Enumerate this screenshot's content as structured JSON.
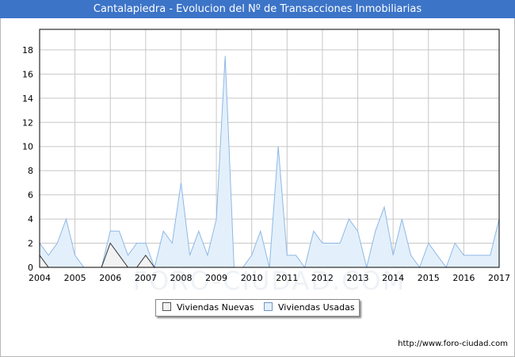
{
  "title": "Cantalapiedra - Evolucion del Nº de Transacciones Inmobiliarias",
  "footer_url": "http://www.foro-ciudad.com",
  "watermark": "FORO-CIUDAD.COM",
  "colors": {
    "title_bg": "#3c74c8",
    "usadas_fill": "#e3f0fb",
    "usadas_line": "#8fb8e6",
    "nuevas_fill": "#f2f2f2",
    "nuevas_line": "#333333",
    "grid": "#c8c8c8"
  },
  "chart_data": {
    "type": "area",
    "x_tick_labels": [
      "2004",
      "2005",
      "2006",
      "2007",
      "2008",
      "2009",
      "2010",
      "2011",
      "2012",
      "2013",
      "2014",
      "2015",
      "2016",
      "2017"
    ],
    "y_ticks": [
      0,
      2,
      4,
      6,
      8,
      10,
      12,
      14,
      16,
      18
    ],
    "ylim": [
      0,
      19.7
    ],
    "xlim": [
      2004,
      2017
    ],
    "grid": true,
    "legend_position": "bottom-center",
    "series": [
      {
        "name": "Viviendas Nuevas",
        "x": [
          "2004-T1",
          "2004-T2",
          "2004-T3",
          "2004-T4",
          "2005-T1",
          "2005-T2",
          "2005-T3",
          "2005-T4",
          "2006-T1",
          "2006-T2",
          "2006-T3",
          "2006-T4",
          "2007-T1",
          "2007-T2"
        ],
        "values": [
          1,
          0,
          0,
          0,
          0,
          0,
          0,
          0,
          2,
          1,
          0,
          0,
          1,
          0
        ]
      },
      {
        "name": "Viviendas Usadas",
        "x": [
          "2004-T1",
          "2004-T2",
          "2004-T3",
          "2004-T4",
          "2005-T1",
          "2005-T2",
          "2005-T3",
          "2005-T4",
          "2006-T1",
          "2006-T2",
          "2006-T3",
          "2006-T4",
          "2007-T1",
          "2007-T2",
          "2007-T3",
          "2007-T4",
          "2008-T1",
          "2008-T2",
          "2008-T3",
          "2008-T4",
          "2009-T1",
          "2009-T2",
          "2009-T3",
          "2009-T4",
          "2010-T1",
          "2010-T2",
          "2010-T3",
          "2010-T4",
          "2011-T1",
          "2011-T2",
          "2011-T3",
          "2011-T4",
          "2012-T1",
          "2012-T2",
          "2012-T3",
          "2012-T4",
          "2013-T1",
          "2013-T2",
          "2013-T3",
          "2013-T4",
          "2014-T1",
          "2014-T2",
          "2014-T3",
          "2014-T4",
          "2015-T1",
          "2015-T2",
          "2015-T3",
          "2015-T4",
          "2016-T1",
          "2016-T2",
          "2016-T3",
          "2016-T4",
          "2017-T1"
        ],
        "values": [
          2,
          1,
          2,
          4,
          1,
          0,
          0,
          0,
          3,
          3,
          1,
          2,
          2,
          0,
          3,
          2,
          7,
          1,
          3,
          1,
          4,
          17.5,
          0,
          0,
          1,
          3,
          0,
          10,
          1,
          1,
          0,
          3,
          2,
          2,
          2,
          4,
          3,
          0,
          3,
          5,
          1,
          4,
          1,
          0,
          2,
          1,
          0,
          2,
          1,
          1,
          1,
          1,
          4
        ]
      }
    ]
  },
  "legend": {
    "nuevas": "Viviendas Nuevas",
    "usadas": "Viviendas Usadas"
  }
}
